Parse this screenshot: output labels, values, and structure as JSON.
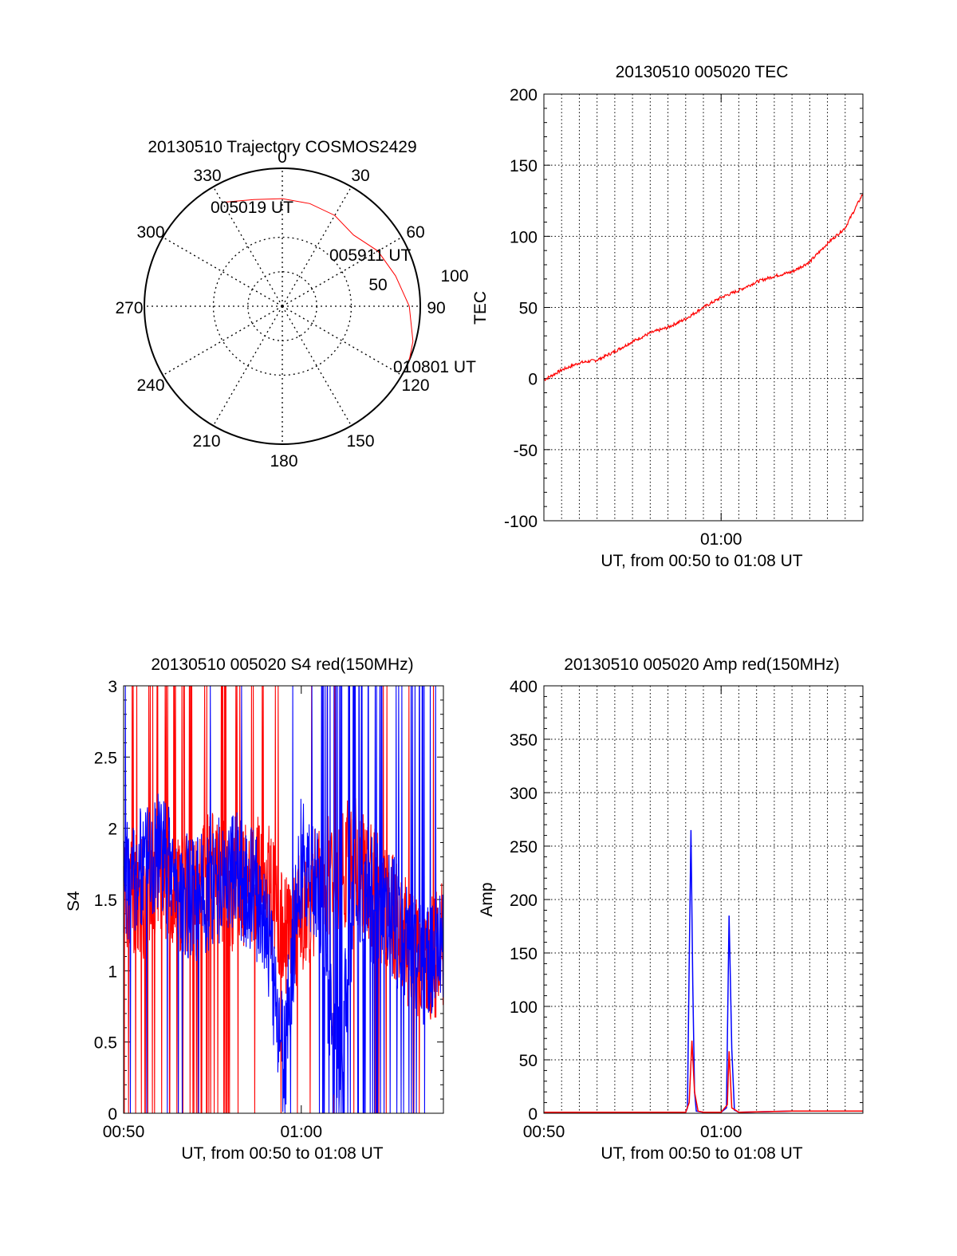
{
  "colors": {
    "red": "#ff0000",
    "blue": "#0000ff",
    "axis": "#000000",
    "grid": "#000000"
  },
  "chart_data": [
    {
      "type": "polar",
      "title": "20130510 Trajectory COSMOS2429",
      "azimuth_labels": [
        "0",
        "30",
        "60",
        "90",
        "120",
        "150",
        "180",
        "210",
        "240",
        "270",
        "300",
        "330"
      ],
      "radial_ticks": [
        {
          "value": 50,
          "label": "50"
        },
        {
          "value": 100,
          "label": "100"
        }
      ],
      "grid": true,
      "trajectory": {
        "name": "",
        "color": "red",
        "points": [
          {
            "azimuth": 330,
            "zenith_angle": 87
          },
          {
            "azimuth": 345,
            "zenith_angle": 80
          },
          {
            "azimuth": 0,
            "zenith_angle": 78
          },
          {
            "azimuth": 15,
            "zenith_angle": 77
          },
          {
            "azimuth": 30,
            "zenith_angle": 76
          },
          {
            "azimuth": 45,
            "zenith_angle": 73
          },
          {
            "azimuth": 60,
            "zenith_angle": 80
          },
          {
            "azimuth": 75,
            "zenith_angle": 85
          },
          {
            "azimuth": 90,
            "zenith_angle": 92
          },
          {
            "azimuth": 105,
            "zenith_angle": 98
          },
          {
            "azimuth": 113,
            "zenith_angle": 100
          }
        ]
      },
      "annotations": [
        {
          "text": "005019 UT",
          "azimuth": 330,
          "zenith_angle": 87
        },
        {
          "text": "005911 UT",
          "azimuth": 47,
          "zenith_angle": 75
        },
        {
          "text": "010801 UT",
          "azimuth": 113,
          "zenith_angle": 100
        }
      ]
    },
    {
      "type": "line",
      "title": "20130510 005020 TEC",
      "xlabel": "UT, from 00:50 to 01:08 UT",
      "ylabel": "TEC",
      "xlim": [
        "00:50",
        "01:08"
      ],
      "ylim": [
        -100,
        200
      ],
      "yticks": [
        -100,
        -50,
        0,
        50,
        100,
        150,
        200
      ],
      "xticks": [
        "01:00"
      ],
      "grid": true,
      "series": [
        {
          "color": "red",
          "x": [
            "00:50",
            "00:51",
            "00:52",
            "00:53",
            "00:54",
            "00:55",
            "00:56",
            "00:57",
            "00:58",
            "00:59",
            "01:00",
            "01:01",
            "01:02",
            "01:03",
            "01:04",
            "01:05",
            "01:06",
            "01:07",
            "01:08"
          ],
          "y": [
            -1,
            6,
            11,
            13,
            19,
            26,
            32,
            36,
            42,
            50,
            57,
            62,
            68,
            72,
            75,
            82,
            95,
            106,
            130
          ]
        }
      ]
    },
    {
      "type": "line",
      "title": "20130510 005020 S4 red(150MHz)",
      "xlabel": "UT, from 00:50 to 01:08 UT",
      "ylabel": "S4",
      "xlim": [
        "00:50",
        "01:08"
      ],
      "ylim": [
        0,
        3
      ],
      "yticks": [
        "0",
        "0.5",
        "1",
        "1.5",
        "2",
        "2.5",
        "3"
      ],
      "xticks": [
        "00:50",
        "01:00"
      ],
      "grid": false,
      "series": [
        {
          "color": "red",
          "x": [
            "00:50",
            "00:51",
            "00:52",
            "00:53",
            "00:54",
            "00:55",
            "00:56",
            "00:57",
            "00:58",
            "00:59",
            "01:00",
            "01:01",
            "01:02",
            "01:03",
            "01:04",
            "01:05",
            "01:06",
            "01:07",
            "01:08"
          ],
          "y": [
            1.6,
            1.5,
            1.7,
            1.5,
            1.6,
            1.8,
            1.5,
            1.6,
            1.7,
            1.2,
            1.4,
            1.6,
            1.7,
            1.8,
            1.6,
            1.4,
            1.2,
            1.0,
            1.2
          ]
        },
        {
          "color": "blue",
          "x": [
            "00:50",
            "00:51",
            "00:52",
            "00:53",
            "00:54",
            "00:55",
            "00:56",
            "00:57",
            "00:58",
            "00:59",
            "01:00",
            "01:01",
            "01:02",
            "01:03",
            "01:04",
            "01:05",
            "01:06",
            "01:07",
            "01:08"
          ],
          "y": [
            1.6,
            1.7,
            1.9,
            1.6,
            1.5,
            1.6,
            1.7,
            1.6,
            1.4,
            0.3,
            1.8,
            1.6,
            0.2,
            1.6,
            1.5,
            1.4,
            1.2,
            1.0,
            1.2
          ]
        }
      ]
    },
    {
      "type": "line",
      "title": "20130510 005020 Amp red(150MHz)",
      "xlabel": "UT, from 00:50 to 01:08 UT",
      "ylabel": "Amp",
      "xlim": [
        "00:50",
        "01:08"
      ],
      "ylim": [
        0,
        400
      ],
      "yticks": [
        0,
        50,
        100,
        150,
        200,
        250,
        300,
        350,
        400
      ],
      "xticks": [
        "00:50",
        "01:00"
      ],
      "grid": true,
      "series": [
        {
          "color": "blue",
          "x": [
            "00:50",
            "00:52",
            "00:54",
            "00:56",
            "00:58",
            "00:58.1",
            "00:58.2",
            "00:58.3",
            "00:58.4",
            "00:58.5",
            "00:58.6",
            "00:59",
            "01:00",
            "01:00.3",
            "01:00.45",
            "01:00.6",
            "01:00.75",
            "01:01",
            "01:04",
            "01:08"
          ],
          "y": [
            1,
            1,
            1,
            1,
            1,
            5,
            140,
            265,
            120,
            20,
            2,
            1,
            1,
            5,
            185,
            60,
            3,
            1,
            2,
            2
          ]
        },
        {
          "color": "red",
          "x": [
            "00:50",
            "00:52",
            "00:54",
            "00:56",
            "00:58",
            "00:58.2",
            "00:58.35",
            "00:58.5",
            "00:58.7",
            "00:59",
            "01:00",
            "01:00.35",
            "01:00.45",
            "01:00.6",
            "01:01",
            "01:04",
            "01:08"
          ],
          "y": [
            1,
            1,
            1,
            1,
            1,
            10,
            68,
            20,
            2,
            1,
            1,
            8,
            58,
            5,
            1,
            2,
            2
          ]
        }
      ]
    }
  ]
}
